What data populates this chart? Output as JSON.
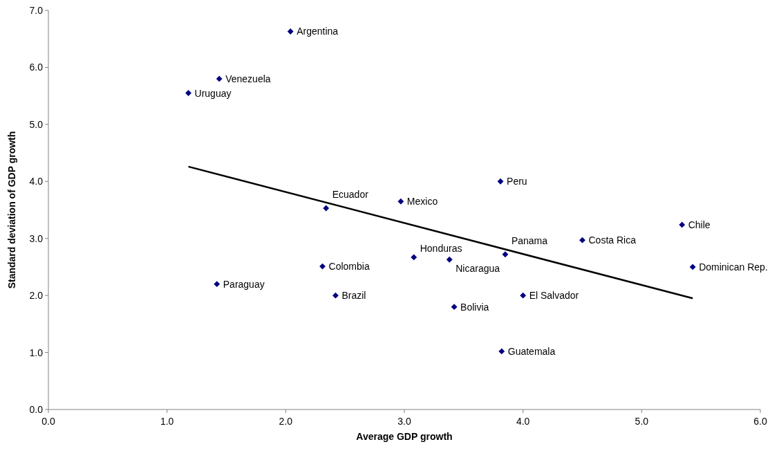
{
  "chart_data": {
    "type": "scatter",
    "xlabel": "Average GDP growth",
    "ylabel": "Standard deviation of GDP growth",
    "xlim": [
      0,
      6
    ],
    "ylim": [
      0,
      7
    ],
    "xticks": [
      {
        "value": 0,
        "label": "0.0"
      },
      {
        "value": 1,
        "label": "1.0"
      },
      {
        "value": 2,
        "label": "2.0"
      },
      {
        "value": 3,
        "label": "3.0"
      },
      {
        "value": 4,
        "label": "4.0"
      },
      {
        "value": 5,
        "label": "5.0"
      },
      {
        "value": 6,
        "label": "6.0"
      }
    ],
    "yticks": [
      {
        "value": 0,
        "label": "0.0"
      },
      {
        "value": 1,
        "label": "1.0"
      },
      {
        "value": 2,
        "label": "2.0"
      },
      {
        "value": 3,
        "label": "3.0"
      },
      {
        "value": 4,
        "label": "4.0"
      },
      {
        "value": 5,
        "label": "5.0"
      },
      {
        "value": 6,
        "label": "6.0"
      },
      {
        "value": 7,
        "label": "7.0"
      }
    ],
    "marker": "diamond",
    "series": [
      {
        "color": "#000080",
        "x": [
          2.04,
          1.44,
          1.18,
          3.81,
          2.97,
          2.34,
          5.34,
          4.5,
          5.43,
          3.08,
          3.38,
          3.85,
          2.31,
          1.42,
          2.42,
          4.0,
          3.42,
          3.82
        ],
        "values": [
          6.63,
          5.8,
          5.55,
          4.0,
          3.65,
          3.53,
          3.24,
          2.97,
          2.5,
          2.67,
          2.63,
          2.72,
          2.51,
          2.2,
          2.0,
          2.0,
          1.8,
          1.02
        ]
      },
      {
        "type": "line",
        "marker": "none",
        "color": "#000000",
        "x": [
          1.18,
          5.43
        ],
        "values": [
          4.26,
          1.95
        ]
      }
    ],
    "annotations": [
      {
        "text": "Argentina",
        "x": 2.04,
        "y": 6.63
      },
      {
        "text": "Venezuela",
        "x": 1.44,
        "y": 5.8
      },
      {
        "text": "Uruguay",
        "x": 1.18,
        "y": 5.55
      },
      {
        "text": "Peru",
        "x": 3.81,
        "y": 4.0
      },
      {
        "text": "Mexico",
        "x": 2.97,
        "y": 3.65
      },
      {
        "text": "Ecuador",
        "x": 2.34,
        "y": 3.53
      },
      {
        "text": "Chile",
        "x": 5.34,
        "y": 3.24
      },
      {
        "text": "Costa Rica",
        "x": 4.5,
        "y": 2.97
      },
      {
        "text": "Dominican Rep.",
        "x": 5.43,
        "y": 2.5
      },
      {
        "text": "Honduras",
        "x": 3.08,
        "y": 2.67
      },
      {
        "text": "Nicaragua",
        "x": 3.38,
        "y": 2.63
      },
      {
        "text": "Panama",
        "x": 3.85,
        "y": 2.72
      },
      {
        "text": "Colombia",
        "x": 2.31,
        "y": 2.51
      },
      {
        "text": "Paraguay",
        "x": 1.42,
        "y": 2.2
      },
      {
        "text": "Brazil",
        "x": 2.42,
        "y": 2.0
      },
      {
        "text": "El Salvador",
        "x": 4.0,
        "y": 2.0
      },
      {
        "text": "Bolivia",
        "x": 3.42,
        "y": 1.8
      },
      {
        "text": "Guatemala",
        "x": 3.82,
        "y": 1.02
      }
    ]
  }
}
